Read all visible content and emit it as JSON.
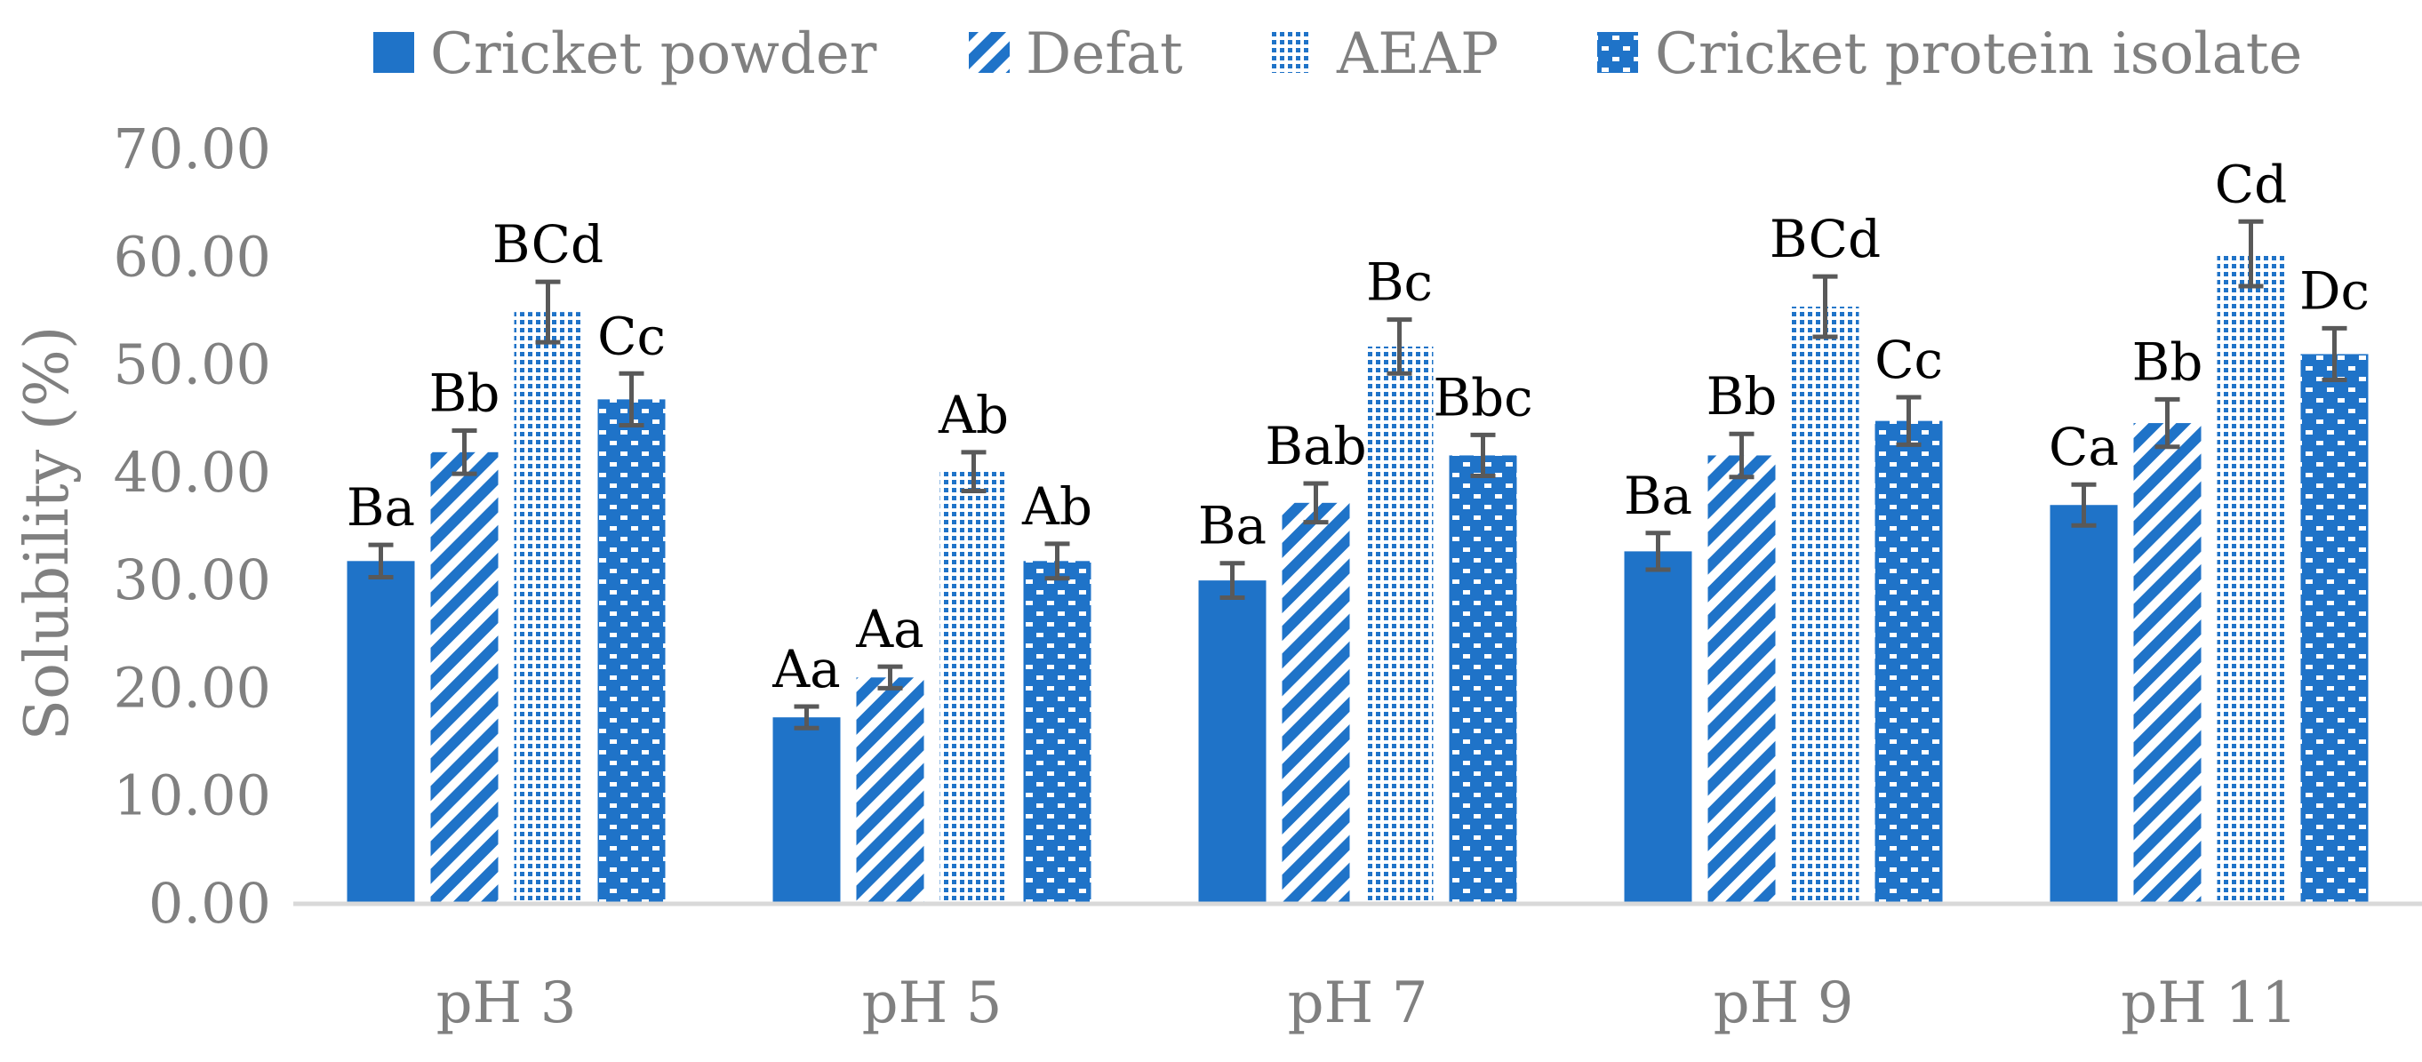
{
  "colors": {
    "bar": "#1f73c8",
    "axis": "#d9d9d9",
    "error_bar": "#595959",
    "text_gray": "#808080",
    "label_black": "#000000"
  },
  "chart_data": {
    "type": "bar",
    "categories": [
      "pH 3",
      "pH 5",
      "pH 7",
      "pH 9",
      "pH 11"
    ],
    "ylabel": "Solubility (%)",
    "ylim": [
      0,
      70
    ],
    "yticks": [
      "0.00",
      "10.00",
      "20.00",
      "30.00",
      "40.00",
      "50.00",
      "60.00",
      "70.00"
    ],
    "grid": false,
    "legend_position": "top",
    "series": [
      {
        "name": "Cricket powder",
        "pattern": "solid",
        "values": [
          31.8,
          17.3,
          30.0,
          32.7,
          37.0
        ],
        "errors": [
          1.5,
          1.0,
          1.6,
          1.7,
          1.9
        ],
        "labels": [
          "Ba",
          "Aa",
          "Ba",
          "Ba",
          "Ca"
        ]
      },
      {
        "name": "Defat",
        "pattern": "diagonal-stripes",
        "values": [
          41.9,
          21.0,
          37.2,
          41.6,
          44.6
        ],
        "errors": [
          2.0,
          1.0,
          1.8,
          2.0,
          2.2
        ],
        "labels": [
          "Bb",
          "Aa",
          "Bab",
          "Bb",
          "Bb"
        ]
      },
      {
        "name": "AEAP",
        "pattern": "dots",
        "values": [
          54.9,
          40.1,
          51.7,
          55.4,
          60.3
        ],
        "errors": [
          2.8,
          1.8,
          2.5,
          2.8,
          3.0
        ],
        "labels": [
          "BCd",
          "Ab",
          "Bc",
          "BCd",
          "Cd"
        ]
      },
      {
        "name": "Cricket protein isolate",
        "pattern": "checker",
        "values": [
          46.8,
          31.8,
          41.6,
          44.8,
          51.0
        ],
        "errors": [
          2.4,
          1.6,
          1.9,
          2.2,
          2.4
        ],
        "labels": [
          "Cc",
          "Ab",
          "Bbc",
          "Cc",
          "Dc"
        ]
      }
    ]
  }
}
